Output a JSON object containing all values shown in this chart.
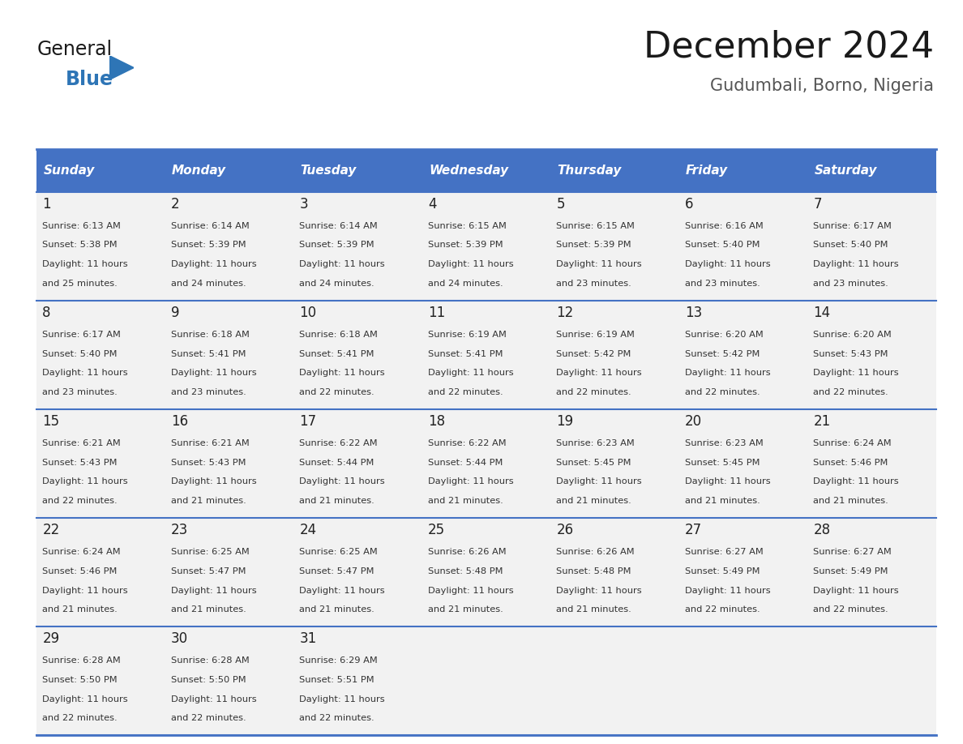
{
  "title": "December 2024",
  "subtitle": "Gudumbali, Borno, Nigeria",
  "header_bg_color": "#4472C4",
  "header_text_color": "#FFFFFF",
  "cell_bg_color": "#F2F2F2",
  "cell_border_color": "#4472C4",
  "text_color": "#333333",
  "day_num_color": "#222222",
  "days_of_week": [
    "Sunday",
    "Monday",
    "Tuesday",
    "Wednesday",
    "Thursday",
    "Friday",
    "Saturday"
  ],
  "calendar_data": [
    [
      {
        "day": 1,
        "sunrise": "6:13 AM",
        "sunset": "5:38 PM",
        "daylight_hours": 11,
        "daylight_minutes": 25
      },
      {
        "day": 2,
        "sunrise": "6:14 AM",
        "sunset": "5:39 PM",
        "daylight_hours": 11,
        "daylight_minutes": 24
      },
      {
        "day": 3,
        "sunrise": "6:14 AM",
        "sunset": "5:39 PM",
        "daylight_hours": 11,
        "daylight_minutes": 24
      },
      {
        "day": 4,
        "sunrise": "6:15 AM",
        "sunset": "5:39 PM",
        "daylight_hours": 11,
        "daylight_minutes": 24
      },
      {
        "day": 5,
        "sunrise": "6:15 AM",
        "sunset": "5:39 PM",
        "daylight_hours": 11,
        "daylight_minutes": 23
      },
      {
        "day": 6,
        "sunrise": "6:16 AM",
        "sunset": "5:40 PM",
        "daylight_hours": 11,
        "daylight_minutes": 23
      },
      {
        "day": 7,
        "sunrise": "6:17 AM",
        "sunset": "5:40 PM",
        "daylight_hours": 11,
        "daylight_minutes": 23
      }
    ],
    [
      {
        "day": 8,
        "sunrise": "6:17 AM",
        "sunset": "5:40 PM",
        "daylight_hours": 11,
        "daylight_minutes": 23
      },
      {
        "day": 9,
        "sunrise": "6:18 AM",
        "sunset": "5:41 PM",
        "daylight_hours": 11,
        "daylight_minutes": 23
      },
      {
        "day": 10,
        "sunrise": "6:18 AM",
        "sunset": "5:41 PM",
        "daylight_hours": 11,
        "daylight_minutes": 22
      },
      {
        "day": 11,
        "sunrise": "6:19 AM",
        "sunset": "5:41 PM",
        "daylight_hours": 11,
        "daylight_minutes": 22
      },
      {
        "day": 12,
        "sunrise": "6:19 AM",
        "sunset": "5:42 PM",
        "daylight_hours": 11,
        "daylight_minutes": 22
      },
      {
        "day": 13,
        "sunrise": "6:20 AM",
        "sunset": "5:42 PM",
        "daylight_hours": 11,
        "daylight_minutes": 22
      },
      {
        "day": 14,
        "sunrise": "6:20 AM",
        "sunset": "5:43 PM",
        "daylight_hours": 11,
        "daylight_minutes": 22
      }
    ],
    [
      {
        "day": 15,
        "sunrise": "6:21 AM",
        "sunset": "5:43 PM",
        "daylight_hours": 11,
        "daylight_minutes": 22
      },
      {
        "day": 16,
        "sunrise": "6:21 AM",
        "sunset": "5:43 PM",
        "daylight_hours": 11,
        "daylight_minutes": 21
      },
      {
        "day": 17,
        "sunrise": "6:22 AM",
        "sunset": "5:44 PM",
        "daylight_hours": 11,
        "daylight_minutes": 21
      },
      {
        "day": 18,
        "sunrise": "6:22 AM",
        "sunset": "5:44 PM",
        "daylight_hours": 11,
        "daylight_minutes": 21
      },
      {
        "day": 19,
        "sunrise": "6:23 AM",
        "sunset": "5:45 PM",
        "daylight_hours": 11,
        "daylight_minutes": 21
      },
      {
        "day": 20,
        "sunrise": "6:23 AM",
        "sunset": "5:45 PM",
        "daylight_hours": 11,
        "daylight_minutes": 21
      },
      {
        "day": 21,
        "sunrise": "6:24 AM",
        "sunset": "5:46 PM",
        "daylight_hours": 11,
        "daylight_minutes": 21
      }
    ],
    [
      {
        "day": 22,
        "sunrise": "6:24 AM",
        "sunset": "5:46 PM",
        "daylight_hours": 11,
        "daylight_minutes": 21
      },
      {
        "day": 23,
        "sunrise": "6:25 AM",
        "sunset": "5:47 PM",
        "daylight_hours": 11,
        "daylight_minutes": 21
      },
      {
        "day": 24,
        "sunrise": "6:25 AM",
        "sunset": "5:47 PM",
        "daylight_hours": 11,
        "daylight_minutes": 21
      },
      {
        "day": 25,
        "sunrise": "6:26 AM",
        "sunset": "5:48 PM",
        "daylight_hours": 11,
        "daylight_minutes": 21
      },
      {
        "day": 26,
        "sunrise": "6:26 AM",
        "sunset": "5:48 PM",
        "daylight_hours": 11,
        "daylight_minutes": 21
      },
      {
        "day": 27,
        "sunrise": "6:27 AM",
        "sunset": "5:49 PM",
        "daylight_hours": 11,
        "daylight_minutes": 22
      },
      {
        "day": 28,
        "sunrise": "6:27 AM",
        "sunset": "5:49 PM",
        "daylight_hours": 11,
        "daylight_minutes": 22
      }
    ],
    [
      {
        "day": 29,
        "sunrise": "6:28 AM",
        "sunset": "5:50 PM",
        "daylight_hours": 11,
        "daylight_minutes": 22
      },
      {
        "day": 30,
        "sunrise": "6:28 AM",
        "sunset": "5:50 PM",
        "daylight_hours": 11,
        "daylight_minutes": 22
      },
      {
        "day": 31,
        "sunrise": "6:29 AM",
        "sunset": "5:51 PM",
        "daylight_hours": 11,
        "daylight_minutes": 22
      },
      null,
      null,
      null,
      null
    ]
  ]
}
